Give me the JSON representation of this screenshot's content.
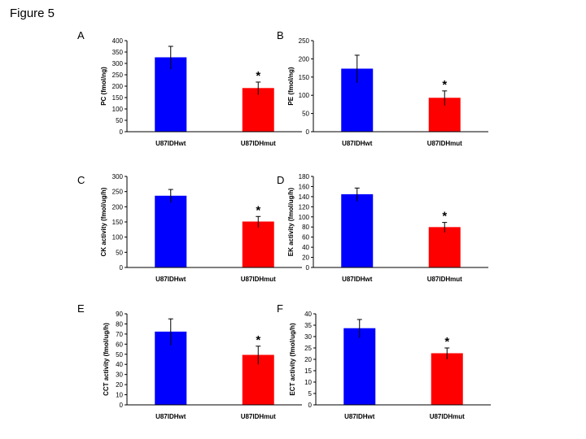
{
  "figure_title": "Figure 5",
  "colors": {
    "wt": "#0000ff",
    "mut": "#ff0000",
    "axis": "#000000"
  },
  "chart_data": [
    {
      "panel": "A",
      "type": "bar",
      "ylabel": "PC (fmol/ng)",
      "ylim": [
        0,
        400
      ],
      "yticks": [
        0,
        50,
        100,
        150,
        200,
        250,
        300,
        350,
        400
      ],
      "categories": [
        "U87IDHwt",
        "U87IDHmut"
      ],
      "values": [
        325,
        190
      ],
      "errors": [
        50,
        28
      ],
      "annotation": "*"
    },
    {
      "panel": "B",
      "type": "bar",
      "ylabel": "PE (fmol/ng)",
      "ylim": [
        0,
        250
      ],
      "yticks": [
        0,
        50,
        100,
        150,
        200,
        250
      ],
      "categories": [
        "U87IDHwt",
        "U87IDHmut"
      ],
      "values": [
        172,
        92
      ],
      "errors": [
        38,
        20
      ],
      "annotation": "*"
    },
    {
      "panel": "C",
      "type": "bar",
      "ylabel": "CK activity (fmol/ug/h)",
      "ylim": [
        0,
        300
      ],
      "yticks": [
        0,
        50,
        100,
        150,
        200,
        250,
        300
      ],
      "categories": [
        "U87IDHwt",
        "U87IDHmut"
      ],
      "values": [
        235,
        150
      ],
      "errors": [
        22,
        18
      ],
      "annotation": "*"
    },
    {
      "panel": "D",
      "type": "bar",
      "ylabel": "EK activity (fmol/ug/h)",
      "ylim": [
        0,
        180
      ],
      "yticks": [
        0,
        20,
        40,
        60,
        80,
        100,
        120,
        140,
        160,
        180
      ],
      "categories": [
        "U87IDHwt",
        "U87IDHmut"
      ],
      "values": [
        144,
        79
      ],
      "errors": [
        13,
        10
      ],
      "annotation": "*"
    },
    {
      "panel": "E",
      "type": "bar",
      "ylabel": "CCT activity (fmol/ug/h)",
      "ylim": [
        0,
        90
      ],
      "yticks": [
        0,
        10,
        20,
        30,
        40,
        50,
        60,
        70,
        80,
        90
      ],
      "categories": [
        "U87IDHwt",
        "U87IDHmut"
      ],
      "values": [
        72,
        49
      ],
      "errors": [
        13,
        9
      ],
      "annotation": "*"
    },
    {
      "panel": "F",
      "type": "bar",
      "ylabel": "ECT activity (fmol/ug/h)",
      "ylim": [
        0,
        40
      ],
      "yticks": [
        0,
        5,
        10,
        15,
        20,
        25,
        30,
        35,
        40
      ],
      "categories": [
        "U87IDHwt",
        "U87IDHmut"
      ],
      "values": [
        33.5,
        22.5
      ],
      "errors": [
        4,
        2.5
      ],
      "annotation": "*"
    }
  ]
}
